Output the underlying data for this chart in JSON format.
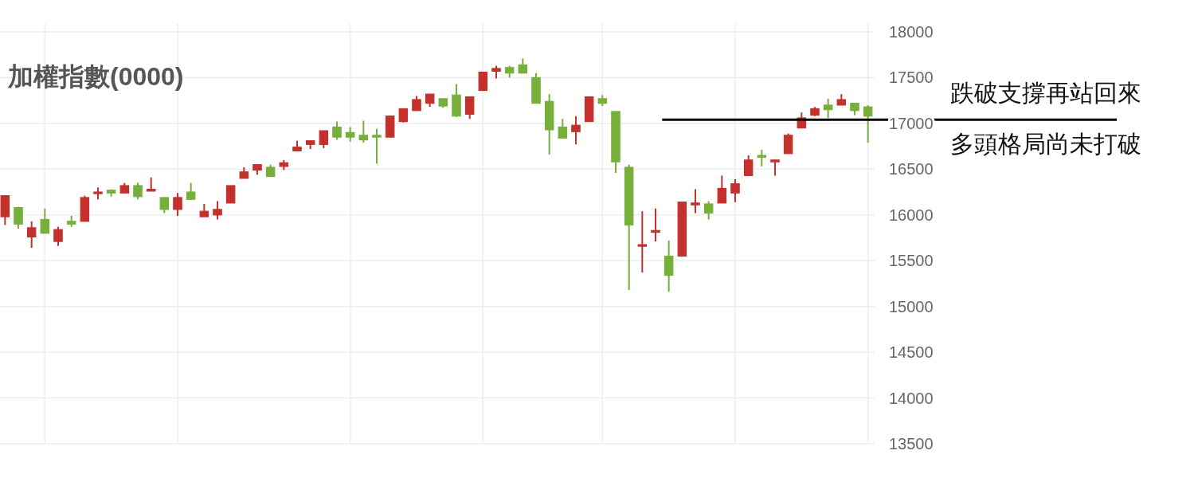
{
  "chart_data": {
    "type": "candlestick",
    "title": "加權指數(0000)",
    "annotations": [
      "跌破支撐再站回來",
      "多頭格局尚未打破"
    ],
    "categories": [
      null,
      null,
      null,
      null,
      null,
      null,
      null,
      null,
      null,
      null,
      null,
      null,
      null,
      null,
      null,
      null,
      null,
      null,
      null,
      null,
      null,
      null,
      null,
      null,
      null,
      null,
      null,
      null,
      null,
      null,
      null,
      null,
      null,
      null,
      null,
      null,
      null,
      null,
      null,
      null,
      null,
      null,
      null,
      null,
      null,
      null,
      null,
      null,
      null,
      null,
      null,
      null,
      null,
      null,
      null,
      null,
      null,
      null,
      null,
      null,
      null,
      null,
      null,
      null,
      null,
      null
    ],
    "ohlc": [
      [
        15980,
        16210,
        15890,
        16210
      ],
      [
        16080,
        16090,
        15850,
        15900
      ],
      [
        15760,
        15930,
        15640,
        15860
      ],
      [
        15950,
        16070,
        15800,
        15800
      ],
      [
        15710,
        15870,
        15660,
        15840
      ],
      [
        15930,
        15990,
        15870,
        15900
      ],
      [
        15930,
        16210,
        15930,
        16190
      ],
      [
        16240,
        16300,
        16170,
        16250
      ],
      [
        16270,
        16280,
        16200,
        16240
      ],
      [
        16240,
        16350,
        16240,
        16320
      ],
      [
        16320,
        16350,
        16170,
        16200
      ],
      [
        16260,
        16410,
        16260,
        16280
      ],
      [
        16190,
        16190,
        16020,
        16060
      ],
      [
        16060,
        16240,
        15990,
        16190
      ],
      [
        16250,
        16350,
        16170,
        16170
      ],
      [
        15980,
        16120,
        15980,
        16040
      ],
      [
        16000,
        16150,
        15950,
        16060
      ],
      [
        16130,
        16320,
        16130,
        16320
      ],
      [
        16400,
        16520,
        16400,
        16470
      ],
      [
        16490,
        16550,
        16440,
        16550
      ],
      [
        16520,
        16550,
        16420,
        16420
      ],
      [
        16530,
        16600,
        16490,
        16570
      ],
      [
        16700,
        16810,
        16700,
        16740
      ],
      [
        16770,
        16810,
        16720,
        16810
      ],
      [
        16770,
        16920,
        16730,
        16920
      ],
      [
        16960,
        17020,
        16820,
        16850
      ],
      [
        16900,
        16960,
        16800,
        16850
      ],
      [
        16870,
        17030,
        16790,
        16820
      ],
      [
        16870,
        16940,
        16560,
        16850
      ],
      [
        16850,
        17080,
        16850,
        17080
      ],
      [
        17020,
        17160,
        17010,
        17160
      ],
      [
        17140,
        17300,
        17140,
        17260
      ],
      [
        17220,
        17320,
        17180,
        17320
      ],
      [
        17270,
        17270,
        17170,
        17190
      ],
      [
        17310,
        17430,
        17070,
        17080
      ],
      [
        17100,
        17290,
        17050,
        17290
      ],
      [
        17360,
        17560,
        17360,
        17560
      ],
      [
        17570,
        17630,
        17490,
        17600
      ],
      [
        17610,
        17630,
        17500,
        17550
      ],
      [
        17640,
        17710,
        17550,
        17550
      ],
      [
        17500,
        17550,
        17220,
        17220
      ],
      [
        17240,
        17320,
        16660,
        16930
      ],
      [
        16960,
        17050,
        16840,
        16840
      ],
      [
        16910,
        17080,
        16770,
        16980
      ],
      [
        17020,
        17290,
        17020,
        17290
      ],
      [
        17270,
        17310,
        17190,
        17220
      ],
      [
        17130,
        17130,
        16460,
        16580
      ],
      [
        16520,
        16550,
        15180,
        15890
      ],
      [
        15665,
        16040,
        15370,
        15675
      ],
      [
        15810,
        16070,
        15710,
        15830
      ],
      [
        15550,
        15720,
        15160,
        15340
      ],
      [
        15550,
        16140,
        15550,
        16140
      ],
      [
        16110,
        16280,
        16020,
        16130
      ],
      [
        16120,
        16150,
        15950,
        16020
      ],
      [
        16130,
        16430,
        16130,
        16290
      ],
      [
        16240,
        16390,
        16140,
        16340
      ],
      [
        16430,
        16650,
        16430,
        16600
      ],
      [
        16650,
        16710,
        16530,
        16630
      ],
      [
        16580,
        16600,
        16430,
        16600
      ],
      [
        16670,
        16890,
        16670,
        16870
      ],
      [
        16950,
        17120,
        16950,
        17060
      ],
      [
        17090,
        17180,
        17080,
        17160
      ],
      [
        17200,
        17270,
        17060,
        17150
      ],
      [
        17200,
        17320,
        17200,
        17260
      ],
      [
        17220,
        17220,
        17090,
        17140
      ],
      [
        17180,
        17200,
        16790,
        17080
      ]
    ],
    "colors": [
      "#c4302b",
      "#76b03a",
      "#c4302b",
      "#76b03a",
      "#c4302b",
      "#76b03a",
      "#c4302b",
      "#c4302b",
      "#76b03a",
      "#c4302b",
      "#76b03a",
      "#c4302b",
      "#76b03a",
      "#c4302b",
      "#76b03a",
      "#c4302b",
      "#c4302b",
      "#c4302b",
      "#c4302b",
      "#c4302b",
      "#76b03a",
      "#c4302b",
      "#c4302b",
      "#c4302b",
      "#c4302b",
      "#76b03a",
      "#76b03a",
      "#76b03a",
      "#76b03a",
      "#c4302b",
      "#c4302b",
      "#c4302b",
      "#c4302b",
      "#76b03a",
      "#76b03a",
      "#c4302b",
      "#c4302b",
      "#c4302b",
      "#76b03a",
      "#76b03a",
      "#76b03a",
      "#76b03a",
      "#76b03a",
      "#c4302b",
      "#c4302b",
      "#76b03a",
      "#76b03a",
      "#76b03a",
      "#c4302b",
      "#c4302b",
      "#76b03a",
      "#c4302b",
      "#c4302b",
      "#76b03a",
      "#c4302b",
      "#c4302b",
      "#c4302b",
      "#76b03a",
      "#c4302b",
      "#c4302b",
      "#c4302b",
      "#c4302b",
      "#76b03a",
      "#c4302b",
      "#76b03a",
      "#76b03a"
    ],
    "ylim": [
      13500,
      18000
    ],
    "yticks": [
      13500,
      14000,
      14500,
      15000,
      15500,
      16000,
      16500,
      17000,
      17500,
      18000
    ],
    "grid": true,
    "ref_lines": [
      {
        "axis": "y",
        "value": 17040,
        "color": "#000000"
      }
    ]
  }
}
